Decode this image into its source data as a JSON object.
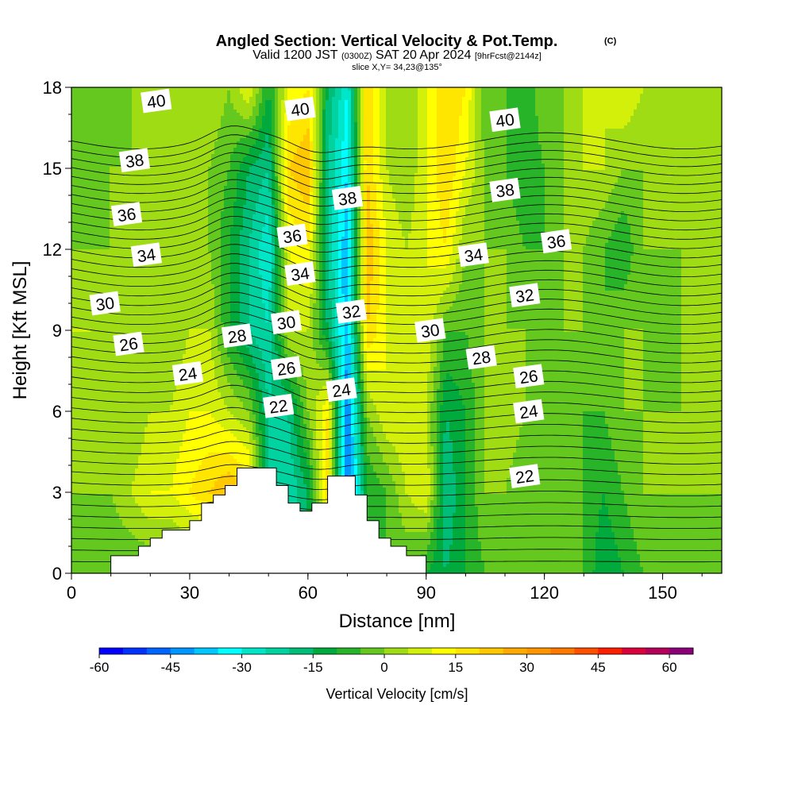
{
  "chart_data": {
    "type": "heatmap",
    "title": "Angled Section: Vertical Velocity & Pot.Temp.",
    "title_mark": "(C)",
    "subtitle_parts": [
      "Valid 1200 JST",
      "(0300Z)",
      "SAT 20 Apr 2024",
      "[9hrFcst@2144z]"
    ],
    "slice_text": "slice X,Y= 34,23@135°",
    "xlabel": "Distance [nm]",
    "ylabel": "Height [Kft MSL]",
    "xlim": [
      0,
      165
    ],
    "ylim": [
      0,
      18
    ],
    "x_ticks": [
      0,
      30,
      60,
      90,
      120,
      150
    ],
    "y_ticks": [
      0,
      3,
      6,
      9,
      12,
      15,
      18
    ],
    "colorbar": {
      "label": "Vertical Velocity [cm/s]",
      "ticks": [
        -60,
        -45,
        -30,
        -15,
        0,
        15,
        30,
        45,
        60
      ],
      "bounds": [
        -60,
        65
      ],
      "step": 5,
      "colors": [
        "#0000ff",
        "#0032ff",
        "#0064ff",
        "#0096ff",
        "#00c8ff",
        "#00ffff",
        "#00e6c8",
        "#00d2a0",
        "#00be78",
        "#00aa3c",
        "#28b428",
        "#64c81e",
        "#a0dc14",
        "#d2f00a",
        "#ffff00",
        "#ffe600",
        "#ffc800",
        "#ffaa00",
        "#ff9600",
        "#ff7800",
        "#ff5000",
        "#ff1e00",
        "#dc003c",
        "#b4005a",
        "#8c0078"
      ]
    },
    "velocity_field": {
      "x": [
        0,
        5,
        10,
        15,
        20,
        25,
        30,
        35,
        40,
        45,
        50,
        55,
        60,
        65,
        70,
        75,
        80,
        85,
        90,
        95,
        100,
        105,
        110,
        115,
        120,
        125,
        130,
        135,
        140,
        145,
        150,
        155,
        160,
        165
      ],
      "y": [
        0,
        3,
        6,
        9,
        12,
        15,
        18
      ],
      "rows": [
        [
          -5,
          -5,
          -5,
          -5,
          -5,
          -5,
          -5,
          -5,
          -5,
          -5,
          -15,
          -20,
          -15,
          -30,
          -45,
          -10,
          -5,
          -5,
          -10,
          -15,
          -10,
          -5,
          -5,
          -5,
          -5,
          -5,
          -5,
          -15,
          -10,
          -5,
          -5,
          -5,
          -5,
          -5
        ],
        [
          0,
          0,
          0,
          5,
          10,
          10,
          15,
          20,
          25,
          20,
          -20,
          -25,
          -15,
          20,
          -50,
          -10,
          -5,
          5,
          10,
          -20,
          -10,
          0,
          0,
          -5,
          -5,
          -5,
          -5,
          -10,
          -5,
          0,
          0,
          0,
          0,
          0
        ],
        [
          0,
          0,
          0,
          0,
          5,
          5,
          10,
          10,
          5,
          0,
          -20,
          -20,
          0,
          15,
          -45,
          0,
          10,
          10,
          5,
          -15,
          -10,
          0,
          5,
          0,
          -5,
          -5,
          -5,
          -5,
          0,
          0,
          0,
          0,
          0,
          0
        ],
        [
          5,
          5,
          0,
          0,
          0,
          0,
          5,
          5,
          -10,
          -20,
          -25,
          5,
          5,
          -15,
          -40,
          20,
          10,
          5,
          10,
          -5,
          -5,
          0,
          0,
          0,
          -5,
          0,
          0,
          -5,
          0,
          0,
          -5,
          0,
          0,
          0
        ],
        [
          0,
          0,
          0,
          0,
          0,
          0,
          5,
          0,
          -10,
          -20,
          -30,
          10,
          15,
          -20,
          -40,
          25,
          10,
          5,
          10,
          15,
          0,
          0,
          0,
          -5,
          -5,
          0,
          0,
          -5,
          -10,
          0,
          0,
          0,
          0,
          0
        ],
        [
          -5,
          -5,
          0,
          0,
          0,
          0,
          5,
          0,
          -5,
          -15,
          -20,
          20,
          25,
          -20,
          -35,
          20,
          5,
          0,
          10,
          20,
          10,
          0,
          -5,
          -10,
          -5,
          0,
          5,
          5,
          0,
          0,
          5,
          0,
          0,
          0
        ],
        [
          0,
          -5,
          -5,
          0,
          0,
          0,
          5,
          5,
          0,
          10,
          -10,
          10,
          15,
          -15,
          -30,
          20,
          5,
          0,
          10,
          20,
          15,
          -5,
          -5,
          -10,
          0,
          0,
          5,
          5,
          10,
          5,
          5,
          0,
          0,
          0
        ]
      ]
    },
    "theta_contours": {
      "levels": [
        22,
        24,
        26,
        28,
        30,
        32,
        34,
        36,
        38,
        40
      ],
      "labels": [
        {
          "text": "40",
          "x": 21.5,
          "y": 17.5
        },
        {
          "text": "40",
          "x": 58,
          "y": 17.2
        },
        {
          "text": "40",
          "x": 110,
          "y": 16.8
        },
        {
          "text": "38",
          "x": 16,
          "y": 15.3
        },
        {
          "text": "38",
          "x": 70,
          "y": 13.9
        },
        {
          "text": "38",
          "x": 110,
          "y": 14.2
        },
        {
          "text": "36",
          "x": 14,
          "y": 13.3
        },
        {
          "text": "36",
          "x": 56,
          "y": 12.5
        },
        {
          "text": "36",
          "x": 123,
          "y": 12.3
        },
        {
          "text": "34",
          "x": 19,
          "y": 11.8
        },
        {
          "text": "34",
          "x": 58,
          "y": 11.1
        },
        {
          "text": "34",
          "x": 102,
          "y": 11.8
        },
        {
          "text": "32",
          "x": 71,
          "y": 9.7
        },
        {
          "text": "32",
          "x": 115,
          "y": 10.3
        },
        {
          "text": "30",
          "x": 8.5,
          "y": 10.0
        },
        {
          "text": "30",
          "x": 54.5,
          "y": 9.3
        },
        {
          "text": "30",
          "x": 91,
          "y": 9.0
        },
        {
          "text": "28",
          "x": 42,
          "y": 8.8
        },
        {
          "text": "28",
          "x": 104,
          "y": 8.0
        },
        {
          "text": "26",
          "x": 14.5,
          "y": 8.5
        },
        {
          "text": "26",
          "x": 54.5,
          "y": 7.6
        },
        {
          "text": "26",
          "x": 116,
          "y": 7.3
        },
        {
          "text": "24",
          "x": 29.5,
          "y": 7.4
        },
        {
          "text": "24",
          "x": 68.5,
          "y": 6.8
        },
        {
          "text": "24",
          "x": 116,
          "y": 6.0
        },
        {
          "text": "22",
          "x": 52.5,
          "y": 6.2
        },
        {
          "text": "22",
          "x": 115,
          "y": 3.6
        }
      ]
    },
    "terrain": [
      [
        0,
        0
      ],
      [
        10,
        0
      ],
      [
        10,
        0.65
      ],
      [
        17,
        0.65
      ],
      [
        17,
        1.0
      ],
      [
        20,
        1.0
      ],
      [
        20,
        1.3
      ],
      [
        23,
        1.3
      ],
      [
        23,
        1.6
      ],
      [
        30,
        1.6
      ],
      [
        30,
        1.95
      ],
      [
        33,
        1.95
      ],
      [
        33,
        2.6
      ],
      [
        36,
        2.6
      ],
      [
        36,
        2.9
      ],
      [
        39,
        2.9
      ],
      [
        39,
        3.25
      ],
      [
        42,
        3.25
      ],
      [
        42,
        3.9
      ],
      [
        52,
        3.9
      ],
      [
        52,
        3.25
      ],
      [
        55,
        3.25
      ],
      [
        55,
        2.6
      ],
      [
        58,
        2.6
      ],
      [
        58,
        2.3
      ],
      [
        61,
        2.3
      ],
      [
        61,
        2.6
      ],
      [
        65,
        2.6
      ],
      [
        65,
        3.6
      ],
      [
        72,
        3.6
      ],
      [
        72,
        2.9
      ],
      [
        75,
        2.9
      ],
      [
        75,
        1.95
      ],
      [
        78,
        1.95
      ],
      [
        78,
        1.3
      ],
      [
        81,
        1.3
      ],
      [
        81,
        1.0
      ],
      [
        85,
        1.0
      ],
      [
        85,
        0.65
      ],
      [
        90,
        0.65
      ],
      [
        90,
        0
      ]
    ]
  }
}
